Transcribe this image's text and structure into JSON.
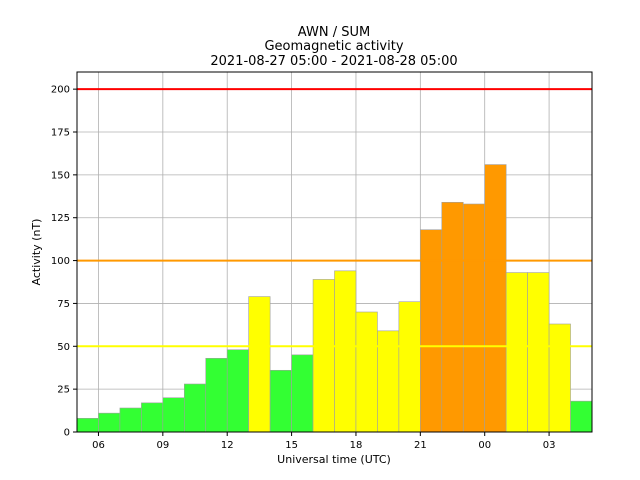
{
  "chart_data": {
    "type": "bar",
    "title_lines": [
      "AWN / SUM",
      "Geomagnetic activity",
      "2021-08-27 05:00 - 2021-08-28 05:00"
    ],
    "xlabel": "Universal time (UTC)",
    "ylabel": "Activity (nT)",
    "ylim": [
      0,
      210
    ],
    "yticks": [
      0,
      25,
      50,
      75,
      100,
      125,
      150,
      175,
      200
    ],
    "xlim_hours": [
      5,
      29
    ],
    "xticks": [
      {
        "hour": 6,
        "label": "06"
      },
      {
        "hour": 9,
        "label": "09"
      },
      {
        "hour": 12,
        "label": "12"
      },
      {
        "hour": 15,
        "label": "15"
      },
      {
        "hour": 18,
        "label": "18"
      },
      {
        "hour": 21,
        "label": "21"
      },
      {
        "hour": 24,
        "label": "00"
      },
      {
        "hour": 27,
        "label": "03"
      }
    ],
    "bar_start_hours": [
      5,
      6,
      7,
      8,
      9,
      10,
      11,
      12,
      13,
      14,
      15,
      16,
      17,
      18,
      19,
      20,
      21,
      22,
      23,
      24,
      25,
      26,
      27,
      28
    ],
    "values": [
      8,
      11,
      14,
      17,
      20,
      28,
      43,
      48,
      79,
      36,
      45,
      89,
      94,
      70,
      59,
      76,
      118,
      134,
      133,
      156,
      93,
      93,
      63,
      18
    ],
    "thresholds": [
      {
        "value": 50,
        "color": "#ffff00"
      },
      {
        "value": 100,
        "color": "#ff9900"
      },
      {
        "value": 200,
        "color": "#ff0000"
      }
    ],
    "level_colors": {
      "low": "#33ff33",
      "moderate": "#ffff00",
      "high": "#ff9900",
      "severe": "#ff0000"
    },
    "grid": true
  }
}
